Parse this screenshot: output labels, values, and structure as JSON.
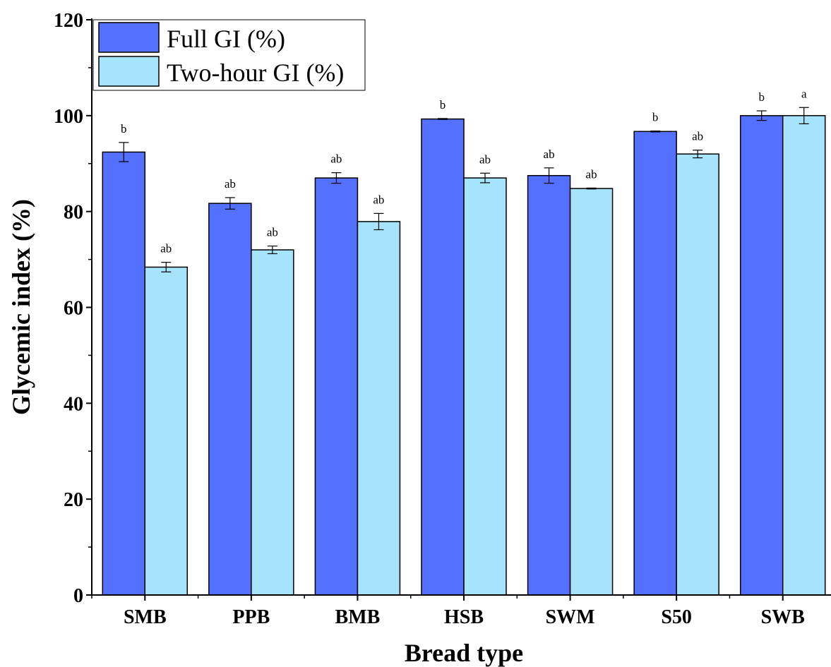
{
  "chart_data": {
    "type": "bar",
    "title": "",
    "xlabel": "Bread type",
    "ylabel": "Glycemic index (%)",
    "ylim": [
      0,
      120
    ],
    "yticks": [
      0,
      20,
      40,
      60,
      80,
      100,
      120
    ],
    "categories": [
      "SMB",
      "PPB",
      "BMB",
      "HSB",
      "SWM",
      "S50",
      "SWB"
    ],
    "series": [
      {
        "name": "Full GI (%)",
        "color": "#5470fe",
        "values": [
          92.4,
          81.7,
          87.0,
          99.3,
          87.5,
          96.7,
          100.0
        ],
        "errors": [
          2.0,
          1.2,
          1.1,
          0.1,
          1.6,
          0.1,
          1.0
        ],
        "sig_labels": [
          "b",
          "ab",
          "ab",
          "b",
          "ab",
          "b",
          "b"
        ]
      },
      {
        "name": "Two-hour GI (%)",
        "color": "#a5e4fc",
        "values": [
          68.4,
          72.0,
          77.9,
          87.0,
          84.8,
          92.0,
          100.0
        ],
        "errors": [
          1.0,
          0.8,
          1.7,
          1.0,
          0.1,
          0.8,
          1.7
        ],
        "sig_labels": [
          "ab",
          "ab",
          "ab",
          "ab",
          "ab",
          "ab",
          "a"
        ]
      }
    ],
    "legend": "top-left",
    "grid": false
  }
}
